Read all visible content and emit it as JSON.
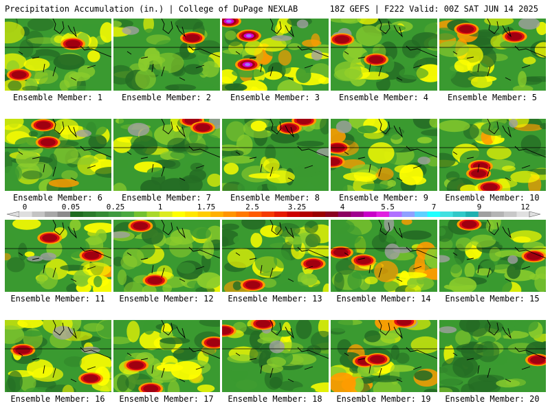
{
  "header": {
    "left": "Precipitation Accumulation (in.) | College of DuPage NEXLAB",
    "right": "18Z GEFS | F222 Valid: 00Z SAT JUN 14 2025"
  },
  "colorbar": {
    "labels": [
      "0",
      "0.05",
      "0.25",
      "1",
      "1.75",
      "2.5",
      "3.25",
      "4",
      "5.5",
      "7",
      "9",
      "12"
    ],
    "colors": [
      "#dedede",
      "#c3c3c3",
      "#a7a7a7",
      "#8b8b8b",
      "#1f6b1f",
      "#2a7a2a",
      "#348a34",
      "#3f9a3f",
      "#4aa93f",
      "#73c12f",
      "#a9d82a",
      "#dcea1f",
      "#ffff00",
      "#ffe600",
      "#ffcc00",
      "#ffb000",
      "#ff9400",
      "#ff7800",
      "#ff5a00",
      "#f53a00",
      "#e51a00",
      "#cc0000",
      "#b20000",
      "#990000",
      "#8a0020",
      "#8c0060",
      "#a0008f",
      "#c800c8",
      "#e020e0",
      "#b070ff",
      "#8fa0ff",
      "#5fd0ff",
      "#20ffff",
      "#40e0e0",
      "#30c8c8",
      "#20b0b0",
      "#a0a0a0",
      "#b4b4b4",
      "#c8c8c8",
      "#e0e0e0"
    ]
  },
  "palette": {
    "green_dark": "#246b24",
    "green": "#3a9a30",
    "light_green": "#8bcc2c",
    "yellow": "#ffff00",
    "orange": "#ff9c00",
    "red": "#e01010",
    "dark_red": "#a00010",
    "magenta": "#d000d0",
    "violet": "#a070ff",
    "blue": "#80a0ff",
    "gray": "#a0a0a0"
  },
  "panels": [
    {
      "label": "Ensemble Member: 1",
      "wetness": 0.45,
      "seed": 11
    },
    {
      "label": "Ensemble Member: 2",
      "wetness": 0.35,
      "seed": 23
    },
    {
      "label": "Ensemble Member: 3",
      "wetness": 0.75,
      "seed": 37
    },
    {
      "label": "Ensemble Member: 4",
      "wetness": 0.4,
      "seed": 41
    },
    {
      "label": "Ensemble Member: 5",
      "wetness": 0.55,
      "seed": 53
    },
    {
      "label": "Ensemble Member: 6",
      "wetness": 0.55,
      "seed": 67
    },
    {
      "label": "Ensemble Member: 7",
      "wetness": 0.4,
      "seed": 71
    },
    {
      "label": "Ensemble Member: 8",
      "wetness": 0.45,
      "seed": 83
    },
    {
      "label": "Ensemble Member: 9",
      "wetness": 0.6,
      "seed": 97
    },
    {
      "label": "Ensemble Member: 10",
      "wetness": 0.7,
      "seed": 101
    },
    {
      "label": "Ensemble Member: 11",
      "wetness": 0.55,
      "seed": 113
    },
    {
      "label": "Ensemble Member: 12",
      "wetness": 0.5,
      "seed": 127
    },
    {
      "label": "Ensemble Member: 13",
      "wetness": 0.55,
      "seed": 131
    },
    {
      "label": "Ensemble Member: 14",
      "wetness": 0.6,
      "seed": 149
    },
    {
      "label": "Ensemble Member: 15",
      "wetness": 0.45,
      "seed": 157
    },
    {
      "label": "Ensemble Member: 16",
      "wetness": 0.5,
      "seed": 163
    },
    {
      "label": "Ensemble Member: 17",
      "wetness": 0.65,
      "seed": 179
    },
    {
      "label": "Ensemble Member: 18",
      "wetness": 0.45,
      "seed": 181
    },
    {
      "label": "Ensemble Member: 19",
      "wetness": 0.65,
      "seed": 193
    },
    {
      "label": "Ensemble Member: 20",
      "wetness": 0.35,
      "seed": 197
    }
  ]
}
